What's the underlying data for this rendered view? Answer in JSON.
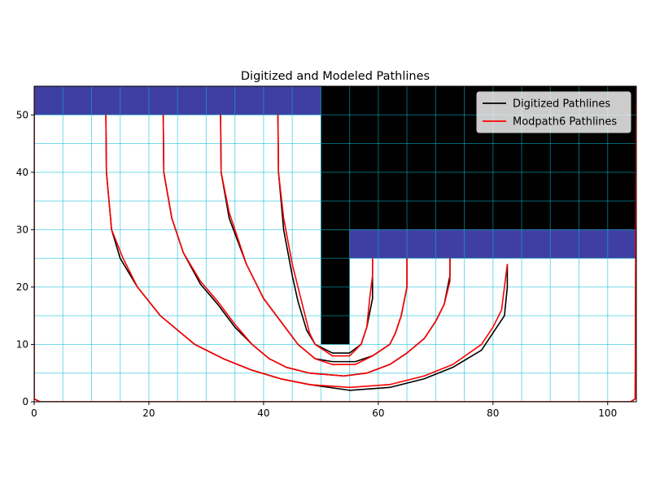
{
  "chart_data": {
    "type": "line",
    "title": "Digitized and Modeled Pathlines",
    "xlabel": "",
    "ylabel": "",
    "xlim": [
      0,
      105
    ],
    "ylim": [
      0,
      55
    ],
    "xticks": [
      0,
      20,
      40,
      60,
      80,
      100
    ],
    "yticks": [
      0,
      10,
      20,
      30,
      40,
      50
    ],
    "grid": {
      "spacing": 5,
      "color": "#00bcd4"
    },
    "legend": {
      "position": "top-right",
      "entries": [
        "Digitized Pathlines",
        "Modpath6 Pathlines"
      ]
    },
    "regions": [
      {
        "name": "top-left-blue-band",
        "x": [
          0,
          50
        ],
        "y": [
          50,
          55
        ],
        "color": "#3f3fa3"
      },
      {
        "name": "black-block-upper",
        "x": [
          50,
          105
        ],
        "y": [
          30,
          55
        ],
        "color": "#000000"
      },
      {
        "name": "black-block-stem",
        "x": [
          50,
          55
        ],
        "y": [
          10,
          30
        ],
        "color": "#000000"
      },
      {
        "name": "right-blue-band",
        "x": [
          55,
          105
        ],
        "y": [
          25,
          30
        ],
        "color": "#3f3fa3"
      }
    ],
    "series": [
      {
        "name": "Digitized Pathlines",
        "color": "#000000",
        "paths": [
          [
            [
              12.5,
              50
            ],
            [
              12.6,
              40
            ],
            [
              13.5,
              30
            ],
            [
              15,
              25
            ],
            [
              18,
              20
            ],
            [
              22,
              15
            ],
            [
              28,
              10
            ],
            [
              33,
              7.5
            ],
            [
              38,
              5.5
            ],
            [
              43,
              4
            ],
            [
              48,
              3
            ],
            [
              55,
              2
            ],
            [
              62,
              2.5
            ],
            [
              68,
              4
            ],
            [
              73,
              6
            ],
            [
              78,
              9
            ],
            [
              80,
              12
            ],
            [
              82,
              15
            ],
            [
              82.5,
              20
            ],
            [
              82.5,
              24
            ]
          ],
          [
            [
              22.5,
              50
            ],
            [
              22.6,
              40
            ],
            [
              24,
              32
            ],
            [
              26,
              26
            ],
            [
              29,
              20.5
            ],
            [
              32,
              17
            ],
            [
              35,
              13
            ],
            [
              38,
              10
            ],
            [
              41,
              7.5
            ],
            [
              44,
              6
            ],
            [
              48,
              5
            ],
            [
              54,
              4.5
            ],
            [
              58,
              5
            ],
            [
              62,
              6.5
            ],
            [
              65,
              8.5
            ],
            [
              68,
              11
            ],
            [
              70,
              14
            ],
            [
              71.5,
              17
            ],
            [
              72.5,
              22
            ],
            [
              72.5,
              25
            ]
          ],
          [
            [
              32.5,
              50
            ],
            [
              32.6,
              40
            ],
            [
              34,
              32
            ],
            [
              37,
              24
            ],
            [
              40,
              18
            ],
            [
              43,
              14
            ],
            [
              46,
              10
            ],
            [
              49,
              7.5
            ],
            [
              52,
              7
            ],
            [
              56,
              7
            ],
            [
              59,
              8
            ],
            [
              62,
              10
            ],
            [
              63,
              12
            ],
            [
              64,
              15
            ],
            [
              65,
              20
            ],
            [
              65,
              25
            ]
          ],
          [
            [
              42.5,
              50
            ],
            [
              42.6,
              40
            ],
            [
              43.5,
              30
            ],
            [
              45,
              22
            ],
            [
              46,
              17.5
            ],
            [
              47.5,
              12.5
            ],
            [
              49,
              10
            ],
            [
              52,
              8.5
            ],
            [
              55,
              8.5
            ],
            [
              57,
              10
            ],
            [
              58,
              13
            ],
            [
              59,
              18
            ],
            [
              59,
              22
            ],
            [
              59,
              25
            ]
          ],
          [
            [
              0,
              55
            ],
            [
              0,
              0.5
            ],
            [
              1,
              0
            ],
            [
              50,
              0
            ],
            [
              104,
              0
            ],
            [
              104.8,
              0.5
            ],
            [
              105,
              55
            ]
          ]
        ]
      },
      {
        "name": "Modpath6 Pathlines",
        "color": "#ff0000",
        "paths": [
          [
            [
              12.5,
              50
            ],
            [
              12.6,
              40
            ],
            [
              13.5,
              30
            ],
            [
              15.5,
              25
            ],
            [
              18,
              20
            ],
            [
              22,
              15
            ],
            [
              28,
              10
            ],
            [
              33,
              7.5
            ],
            [
              38,
              5.5
            ],
            [
              43,
              4
            ],
            [
              48,
              3
            ],
            [
              55,
              2.5
            ],
            [
              62,
              3
            ],
            [
              68,
              4.5
            ],
            [
              73,
              6.5
            ],
            [
              78,
              10
            ],
            [
              80,
              13
            ],
            [
              81.5,
              16
            ],
            [
              82,
              20
            ],
            [
              82.5,
              24
            ]
          ],
          [
            [
              22.5,
              50
            ],
            [
              22.6,
              40
            ],
            [
              24,
              32
            ],
            [
              26,
              26
            ],
            [
              29,
              21
            ],
            [
              32,
              17.5
            ],
            [
              35,
              13.5
            ],
            [
              38,
              10
            ],
            [
              41,
              7.5
            ],
            [
              44,
              6
            ],
            [
              48,
              5
            ],
            [
              54,
              4.5
            ],
            [
              58,
              5
            ],
            [
              62,
              6.5
            ],
            [
              65,
              8.5
            ],
            [
              68,
              11
            ],
            [
              70,
              14
            ],
            [
              71.5,
              17
            ],
            [
              72.5,
              21
            ],
            [
              72.5,
              25
            ]
          ],
          [
            [
              32.5,
              50
            ],
            [
              32.6,
              40
            ],
            [
              34,
              33
            ],
            [
              37,
              24
            ],
            [
              40,
              18
            ],
            [
              43,
              14
            ],
            [
              46,
              10
            ],
            [
              49,
              7.5
            ],
            [
              52,
              6.5
            ],
            [
              56,
              6.5
            ],
            [
              59,
              8
            ],
            [
              62,
              10
            ],
            [
              63,
              12
            ],
            [
              64,
              15
            ],
            [
              65,
              20
            ],
            [
              65,
              25
            ]
          ],
          [
            [
              42.5,
              50
            ],
            [
              42.6,
              40
            ],
            [
              43.5,
              32
            ],
            [
              45,
              24
            ],
            [
              46.5,
              18
            ],
            [
              48,
              12
            ],
            [
              49,
              10
            ],
            [
              52,
              8
            ],
            [
              55,
              8
            ],
            [
              57,
              10
            ],
            [
              58,
              13
            ],
            [
              58.5,
              18
            ],
            [
              59,
              22
            ],
            [
              59,
              25
            ]
          ],
          [
            [
              0,
              55
            ],
            [
              0,
              0.5
            ],
            [
              1,
              0
            ],
            [
              50,
              0
            ],
            [
              104,
              0
            ],
            [
              104.8,
              0.5
            ],
            [
              105,
              55
            ]
          ]
        ]
      }
    ]
  }
}
